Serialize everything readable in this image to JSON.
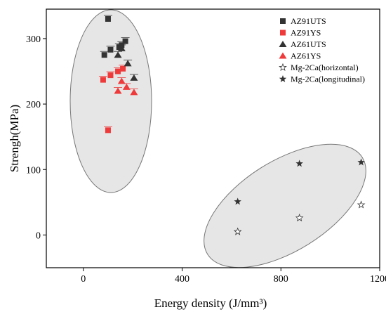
{
  "chart_data": {
    "type": "scatter",
    "xlabel": "Energy density (J/mm³)",
    "ylabel": "Strengh(MPa)",
    "xlim": [
      -150,
      1200
    ],
    "ylim": [
      -50,
      345
    ],
    "xticks": [
      0,
      400,
      800,
      1200
    ],
    "yticks": [
      0,
      100,
      200,
      300
    ],
    "legend": {
      "placement": "top-right"
    },
    "colors": {
      "black": "#333333",
      "red": "#ee3a3a",
      "ellipse_fill": "#e6e6e6",
      "ellipse_stroke": "#777777"
    },
    "series": [
      {
        "name": "AZ91UTS",
        "marker": "square",
        "color": "#333333",
        "points": [
          [
            85,
            275
          ],
          [
            100,
            330
          ],
          [
            110,
            283
          ],
          [
            145,
            287
          ],
          [
            155,
            290
          ],
          [
            170,
            296
          ]
        ]
      },
      {
        "name": "AZ91YS",
        "marker": "square",
        "color": "#ee3a3a",
        "points": [
          [
            80,
            237
          ],
          [
            100,
            160
          ],
          [
            110,
            244
          ],
          [
            140,
            250
          ],
          [
            160,
            254
          ]
        ]
      },
      {
        "name": "AZ61UTS",
        "marker": "triangle",
        "color": "#333333",
        "points": [
          [
            140,
            275
          ],
          [
            180,
            262
          ],
          [
            205,
            240
          ],
          [
            155,
            285
          ]
        ]
      },
      {
        "name": "AZ61YS",
        "marker": "triangle",
        "color": "#ee3a3a",
        "points": [
          [
            140,
            220
          ],
          [
            155,
            235
          ],
          [
            175,
            226
          ],
          [
            205,
            218
          ]
        ]
      },
      {
        "name": "Mg-2Ca(horizontal)",
        "marker": "star-open",
        "color": "#333333",
        "points": [
          [
            625,
            5
          ],
          [
            875,
            26
          ],
          [
            1125,
            46
          ]
        ]
      },
      {
        "name": "Mg-2Ca(longitudinal)",
        "marker": "star",
        "color": "#333333",
        "points": [
          [
            625,
            51
          ],
          [
            875,
            109
          ],
          [
            1125,
            111
          ]
        ]
      }
    ]
  }
}
